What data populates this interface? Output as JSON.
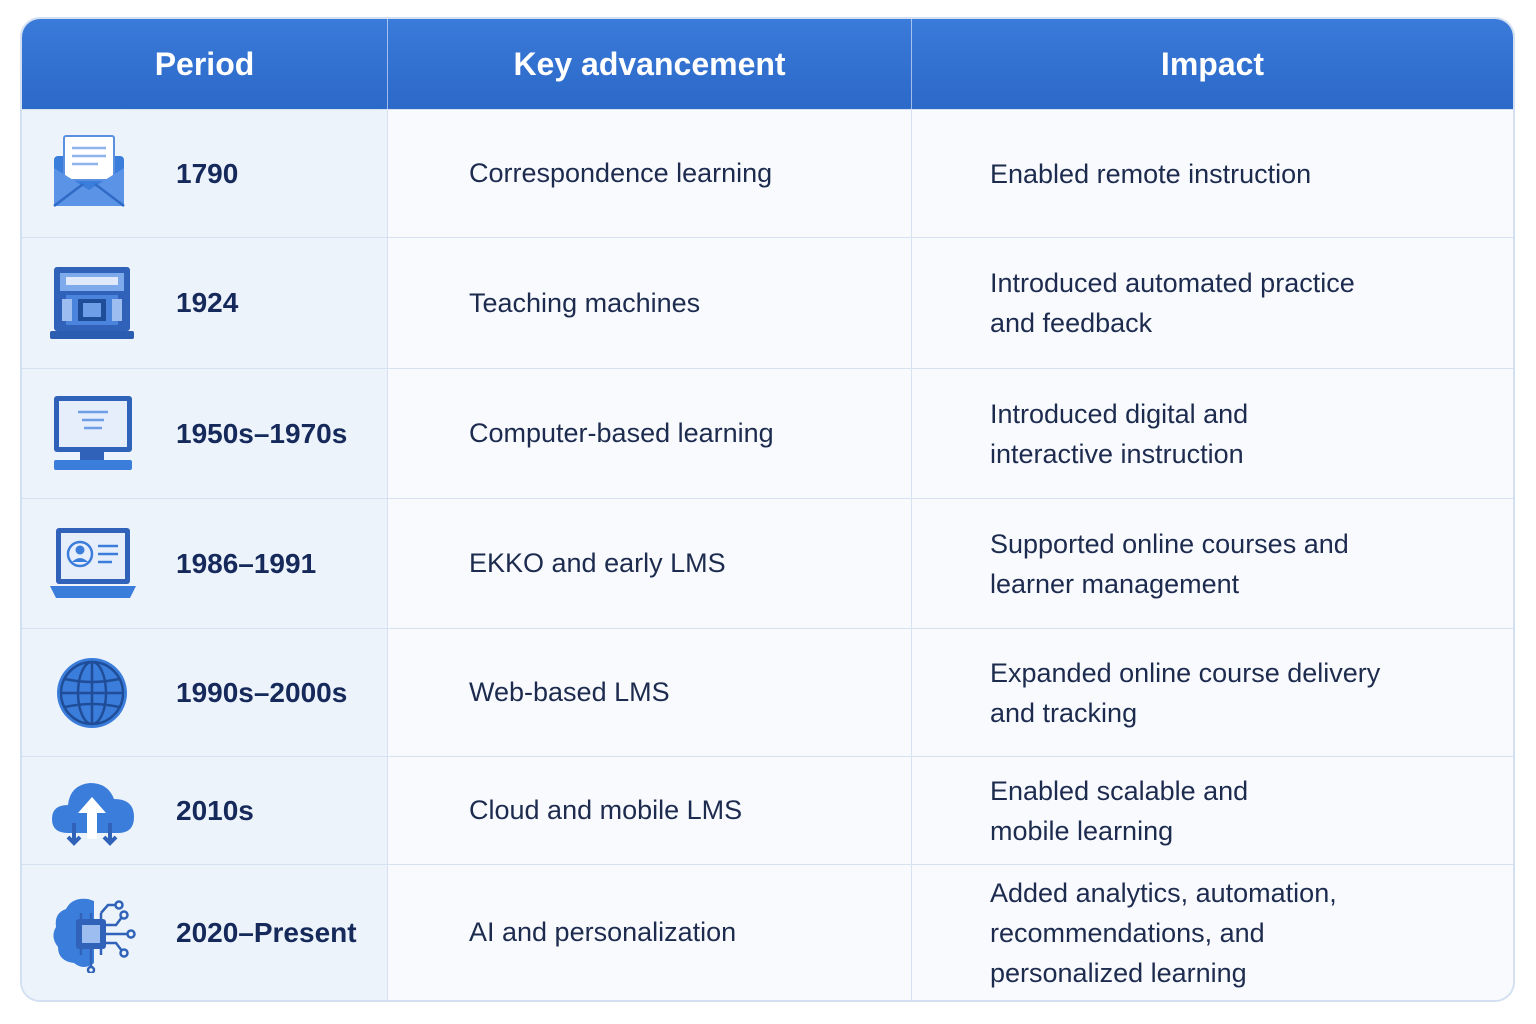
{
  "columns": {
    "period": "Period",
    "advancement": "Key advancement",
    "impact": "Impact"
  },
  "rows": [
    {
      "icon": "envelope-icon",
      "period": "1790",
      "advancement": "Correspondence learning",
      "impact": "Enabled remote instruction"
    },
    {
      "icon": "teaching-machine-icon",
      "period": "1924",
      "advancement": "Teaching machines",
      "impact": "Introduced automated practice\nand feedback"
    },
    {
      "icon": "desktop-computer-icon",
      "period": "1950s–1970s",
      "advancement": "Computer-based learning",
      "impact": "Introduced digital and\ninteractive instruction"
    },
    {
      "icon": "laptop-profile-icon",
      "period": "1986–1991",
      "advancement": "EKKO and early LMS",
      "impact": "Supported online courses and\nlearner management"
    },
    {
      "icon": "globe-icon",
      "period": "1990s–2000s",
      "advancement": "Web-based LMS",
      "impact": "Expanded online course delivery\nand tracking"
    },
    {
      "icon": "cloud-upload-icon",
      "period": "2010s",
      "advancement": "Cloud and mobile LMS",
      "impact": "Enabled scalable and\nmobile learning"
    },
    {
      "icon": "ai-brain-chip-icon",
      "period": "2020–Present",
      "advancement": "AI and personalization",
      "impact": "Added analytics, automation,\nrecommendations, and\npersonalized learning"
    }
  ],
  "colors": {
    "header": "#2f6fd0",
    "period_column": "#edf3fb",
    "icon_blue": "#3b7ddb",
    "text": "#1d2b4f"
  }
}
